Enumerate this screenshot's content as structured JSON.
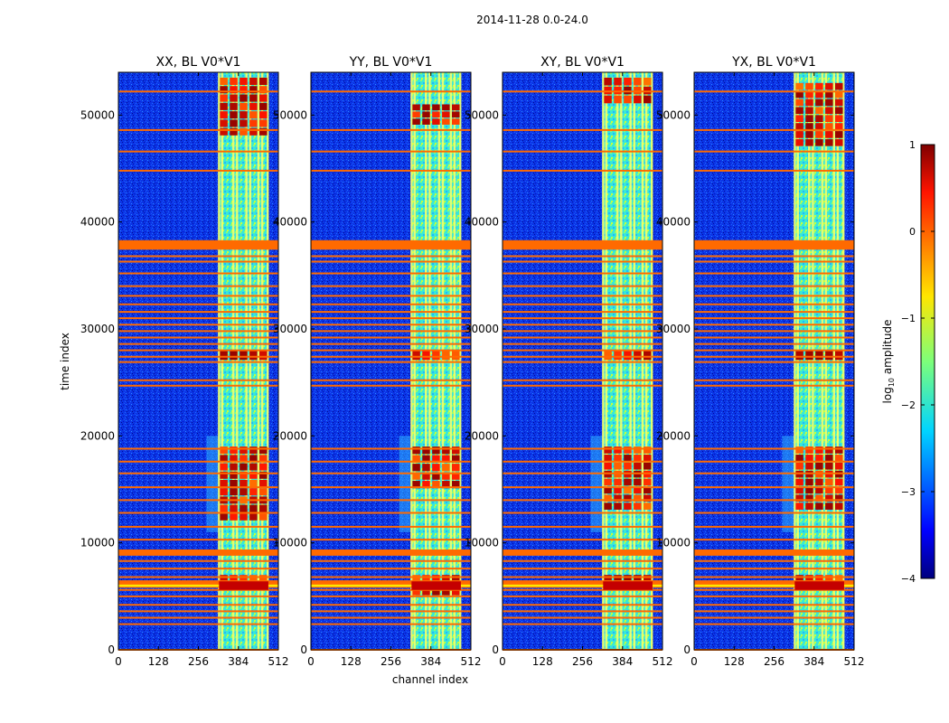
{
  "figure_title": "2014-11-28 0.0-24.0",
  "colors": {
    "flag_line": "#ff6a00",
    "background_noise": "#0b2fe0",
    "hot": "#d40000"
  },
  "chart_data": {
    "type": "heatmap",
    "title": "2014-11-28 0.0-24.0",
    "xlabel": "channel index",
    "ylabel": "time index",
    "xlim": [
      0,
      512
    ],
    "ylim": [
      0,
      54000
    ],
    "x_ticks": [
      0,
      128,
      256,
      384,
      512
    ],
    "y_ticks": [
      0,
      10000,
      20000,
      30000,
      40000,
      50000
    ],
    "x_tick_labels": [
      "0",
      "128",
      "256",
      "384",
      "512"
    ],
    "y_tick_labels": [
      "0",
      "10000",
      "20000",
      "30000",
      "40000",
      "50000"
    ],
    "panels": [
      {
        "title": "XX, BL V0*V1",
        "hot_regions": [
          [
            12000,
            19000
          ],
          [
            27000,
            28000
          ],
          [
            5500,
            7000
          ],
          [
            48000,
            53500
          ]
        ]
      },
      {
        "title": "YY, BL V0*V1",
        "hot_regions": [
          [
            15000,
            19000
          ],
          [
            27000,
            28000
          ],
          [
            5000,
            7000
          ],
          [
            49000,
            51000
          ]
        ]
      },
      {
        "title": "XY, BL V0*V1",
        "hot_regions": [
          [
            13000,
            19000
          ],
          [
            27000,
            28000
          ],
          [
            5500,
            7000
          ],
          [
            51000,
            53500
          ]
        ]
      },
      {
        "title": "YX, BL V0*V1",
        "hot_regions": [
          [
            13000,
            19000
          ],
          [
            27000,
            28000
          ],
          [
            5500,
            7000
          ],
          [
            47000,
            53000
          ]
        ]
      }
    ],
    "bright_channel_range": [
      322,
      480
    ],
    "bright_column_channels": [
      322,
      332,
      368,
      380,
      410,
      422,
      448,
      460,
      478
    ],
    "flagged_times": [
      0,
      2400,
      3000,
      3600,
      4200,
      5000,
      5600,
      6200,
      6800,
      7600,
      8300,
      8900,
      9300,
      10300,
      11500,
      12800,
      14000,
      15200,
      16500,
      17600,
      18800,
      24700,
      25200,
      26900,
      27400,
      28000,
      28600,
      29200,
      29800,
      30400,
      31000,
      31600,
      32300,
      33100,
      34000,
      35200,
      36300,
      36800,
      37500,
      37900,
      38200,
      44800,
      46600,
      48600,
      52200
    ],
    "flag_bands": [
      [
        37500,
        38300
      ],
      [
        8800,
        9300
      ],
      [
        5800,
        6500
      ]
    ],
    "colorbar": {
      "label_prefix": "log",
      "label_subscript": "10",
      "label_suffix": " amplitude",
      "range": [
        -4,
        1
      ],
      "ticks": [
        1,
        0,
        -1,
        -2,
        -3,
        -4
      ],
      "tick_labels": [
        "1",
        "0",
        "−1",
        "−2",
        "−3",
        "−4"
      ],
      "colormap": "jet"
    }
  }
}
